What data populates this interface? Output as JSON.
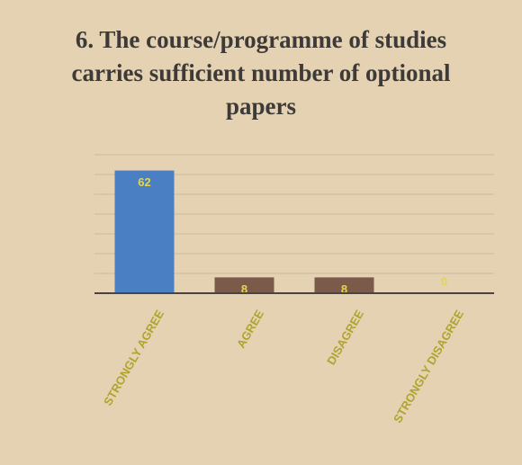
{
  "chart_data": {
    "type": "bar",
    "title": "6. The course/programme of studies carries sufficient number of optional papers",
    "categories": [
      "STRONGLY AGREE",
      "AGREE",
      "DISAGREE",
      "STRONGLY DISAGREE"
    ],
    "values": [
      62,
      8,
      8,
      0
    ],
    "colors": [
      "#4a7fc3",
      "#7b5a4a",
      "#7b5a4a",
      "#7b5a4a"
    ],
    "ylim": [
      0,
      70
    ],
    "yticks": [
      0,
      10,
      20,
      30,
      40,
      50,
      60,
      70
    ],
    "grid": true
  }
}
